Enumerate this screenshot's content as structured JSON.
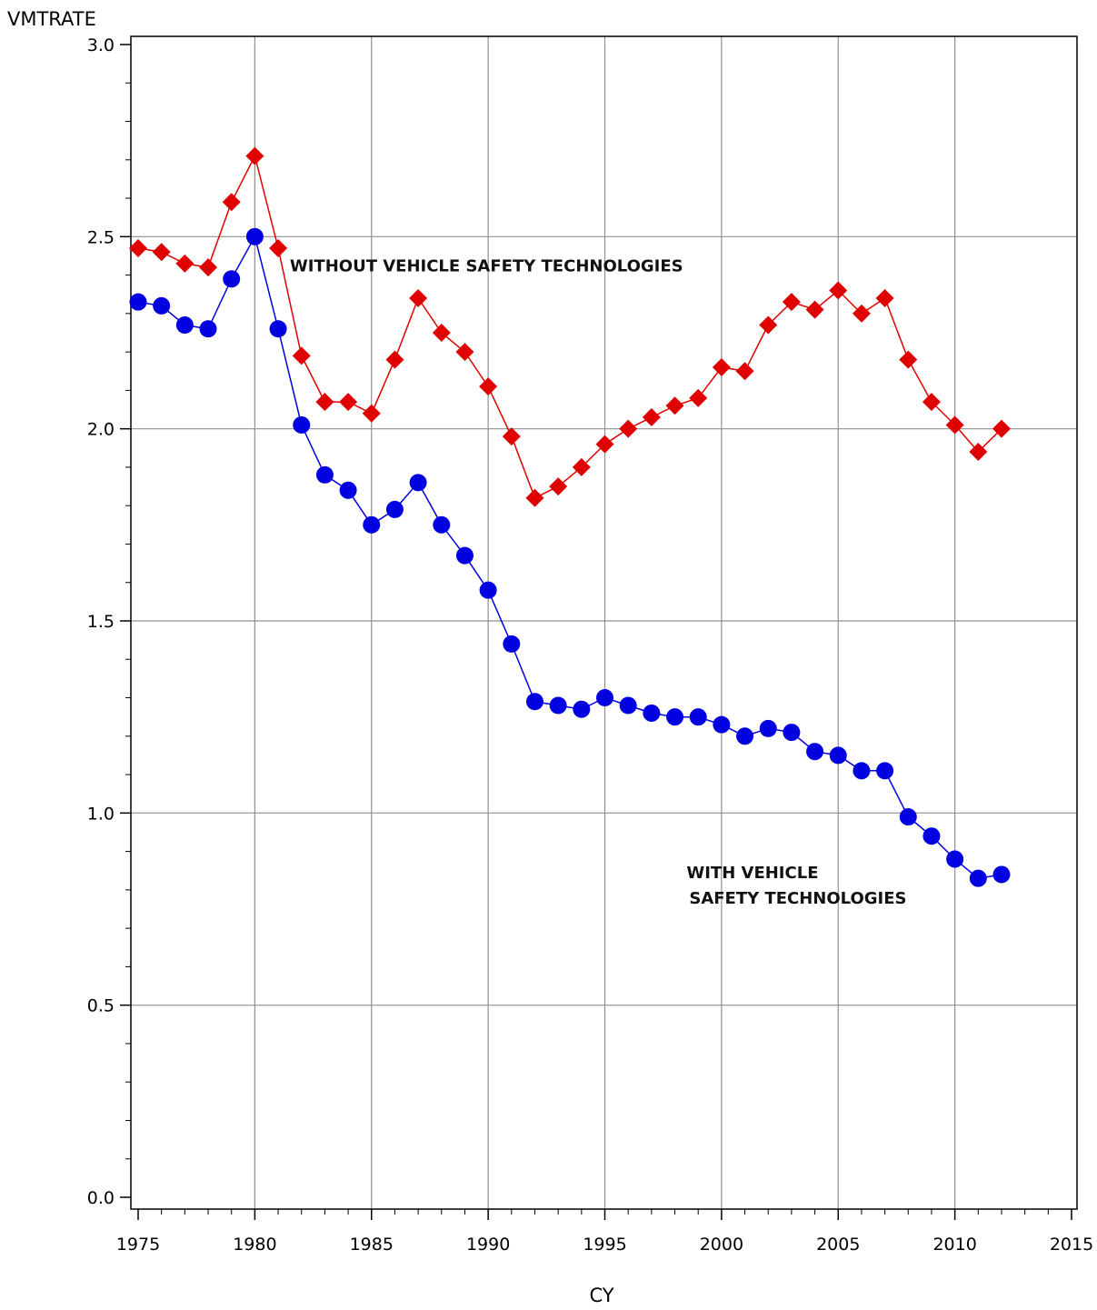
{
  "chart_data": {
    "type": "line",
    "ylabel": "VMTRATE",
    "xlabel": "CY",
    "xlim": [
      1975,
      2015
    ],
    "ylim": [
      0,
      3
    ],
    "xticks": [
      1975,
      1980,
      1985,
      1990,
      1995,
      2000,
      2005,
      2010,
      2015
    ],
    "yticks": [
      0.0,
      0.5,
      1.0,
      1.5,
      2.0,
      2.5,
      3.0
    ],
    "grid": true,
    "x": [
      1975,
      1976,
      1977,
      1978,
      1979,
      1980,
      1981,
      1982,
      1983,
      1984,
      1985,
      1986,
      1987,
      1988,
      1989,
      1990,
      1991,
      1992,
      1993,
      1994,
      1995,
      1996,
      1997,
      1998,
      1999,
      2000,
      2001,
      2002,
      2003,
      2004,
      2005,
      2006,
      2007,
      2008,
      2009,
      2010,
      2011,
      2012
    ],
    "series": [
      {
        "name": "WITHOUT VEHICLE SAFETY TECHNOLOGIES",
        "color": "#e00000",
        "marker": "diamond",
        "values": [
          2.47,
          2.46,
          2.43,
          2.42,
          2.59,
          2.71,
          2.47,
          2.19,
          2.07,
          2.07,
          2.04,
          2.18,
          2.34,
          2.25,
          2.2,
          2.11,
          1.98,
          1.82,
          1.85,
          1.9,
          1.96,
          2.0,
          2.03,
          2.06,
          2.08,
          2.16,
          2.15,
          2.27,
          2.33,
          2.31,
          2.36,
          2.3,
          2.34,
          2.18,
          2.07,
          2.01,
          1.94,
          2.0
        ]
      },
      {
        "name": "WITH VEHICLE SAFETY TECHNOLOGIES",
        "color": "#0000e0",
        "marker": "circle",
        "values": [
          2.33,
          2.32,
          2.27,
          2.26,
          2.39,
          2.5,
          2.26,
          2.01,
          1.88,
          1.84,
          1.75,
          1.79,
          1.86,
          1.75,
          1.67,
          1.58,
          1.44,
          1.29,
          1.28,
          1.27,
          1.3,
          1.28,
          1.26,
          1.25,
          1.25,
          1.23,
          1.2,
          1.22,
          1.21,
          1.16,
          1.15,
          1.11,
          1.11,
          0.99,
          0.94,
          0.88,
          0.83,
          0.84
        ]
      }
    ],
    "annotations": [
      {
        "id": "without",
        "lines": [
          "WITHOUT VEHICLE SAFETY TECHNOLOGIES"
        ],
        "x": 1981.5,
        "y": 2.41
      },
      {
        "id": "with",
        "lines": [
          "WITH VEHICLE",
          "SAFETY TECHNOLOGIES"
        ],
        "x": 1998.5,
        "y": 0.83
      }
    ]
  }
}
